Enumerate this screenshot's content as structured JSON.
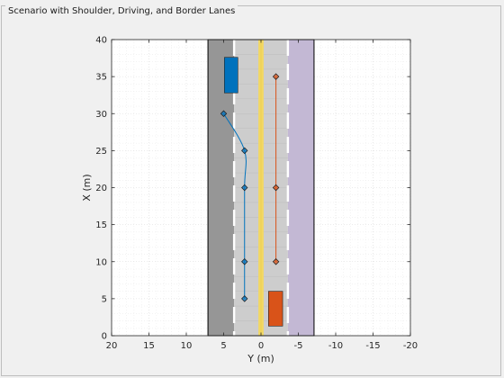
{
  "panel": {
    "title": "Scenario with Shoulder, Driving, and Border Lanes"
  },
  "chart_data": {
    "type": "scatter",
    "title": "",
    "xlabel": "Y (m)",
    "ylabel": "X (m)",
    "xlim": [
      20,
      -20
    ],
    "ylim": [
      0,
      40
    ],
    "xticks": [
      20,
      15,
      10,
      5,
      0,
      -5,
      -10,
      -15,
      -20
    ],
    "yticks": [
      0,
      5,
      10,
      15,
      20,
      25,
      30,
      35,
      40
    ],
    "grid": true,
    "road": {
      "shoulder_lane": [
        7.1,
        3.6
      ],
      "driving_lanes": [
        [
          3.6,
          0
        ],
        [
          0,
          -3.6
        ]
      ],
      "border_lane": [
        -3.6,
        -7.1
      ],
      "length": [
        0,
        40
      ]
    },
    "series": [
      {
        "color": "#0072BD",
        "waypoints": [
          [
            5,
            30
          ],
          [
            2.2,
            25
          ],
          [
            2.2,
            20
          ],
          [
            2.2,
            10
          ],
          [
            2.2,
            5
          ]
        ],
        "vehicle": {
          "y": [
            4.9,
            3.1
          ],
          "x": [
            32.8,
            37.6
          ]
        }
      },
      {
        "color": "#D95319",
        "waypoints": [
          [
            -2,
            35
          ],
          [
            -2,
            20
          ],
          [
            -2,
            10
          ]
        ],
        "vehicle": {
          "y": [
            -1,
            -2.9
          ],
          "x": [
            1.3,
            6
          ]
        }
      }
    ]
  }
}
